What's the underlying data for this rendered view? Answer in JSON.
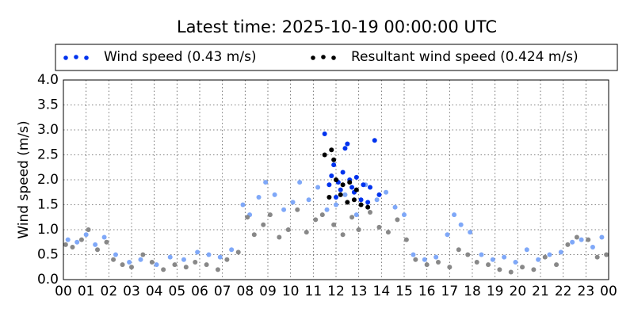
{
  "chart_data": {
    "type": "scatter",
    "title": "Latest time: 2025-10-19 00:00:00 UTC",
    "y_label": "Wind speed (m/s)",
    "xlim": [
      0,
      24
    ],
    "xticks": [
      {
        "value": 0,
        "label": "00"
      },
      {
        "value": 1,
        "label": "01"
      },
      {
        "value": 2,
        "label": "02"
      },
      {
        "value": 3,
        "label": "03"
      },
      {
        "value": 4,
        "label": "04"
      },
      {
        "value": 5,
        "label": "05"
      },
      {
        "value": 6,
        "label": "06"
      },
      {
        "value": 7,
        "label": "07"
      },
      {
        "value": 8,
        "label": "08"
      },
      {
        "value": 9,
        "label": "09"
      },
      {
        "value": 10,
        "label": "10"
      },
      {
        "value": 11,
        "label": "11"
      },
      {
        "value": 12,
        "label": "12"
      },
      {
        "value": 13,
        "label": "13"
      },
      {
        "value": 14,
        "label": "14"
      },
      {
        "value": 15,
        "label": "15"
      },
      {
        "value": 16,
        "label": "16"
      },
      {
        "value": 17,
        "label": "17"
      },
      {
        "value": 18,
        "label": "18"
      },
      {
        "value": 19,
        "label": "19"
      },
      {
        "value": 20,
        "label": "20"
      },
      {
        "value": 21,
        "label": "21"
      },
      {
        "value": 22,
        "label": "22"
      },
      {
        "value": 23,
        "label": "23"
      },
      {
        "value": 24,
        "label": "00"
      }
    ],
    "ylim": [
      0,
      4
    ],
    "yticks": [
      {
        "value": 0,
        "label": "0.0"
      },
      {
        "value": 0.5,
        "label": "0.5"
      },
      {
        "value": 1,
        "label": "1.0"
      },
      {
        "value": 1.5,
        "label": "1.5"
      },
      {
        "value": 2,
        "label": "2.0"
      },
      {
        "value": 2.5,
        "label": "2.5"
      },
      {
        "value": 3,
        "label": "3.0"
      },
      {
        "value": 3.5,
        "label": "3.5"
      },
      {
        "value": 4,
        "label": "4.0"
      }
    ],
    "grid": true,
    "legend": "top",
    "series": [
      {
        "name": "Wind speed (0.43 m/s)",
        "color": "#0033ee",
        "x": [
          11.5,
          12.5,
          12.4,
          13.7,
          11.9,
          12.3,
          12.6,
          12.9,
          13.2,
          13.5,
          11.8,
          12.1,
          12.8,
          13.1,
          13.9,
          12.0,
          12.7,
          11.7,
          13.4,
          12.2
        ],
        "values": [
          2.92,
          2.72,
          2.63,
          2.79,
          2.3,
          2.15,
          2.0,
          2.05,
          1.9,
          1.85,
          2.08,
          1.95,
          1.75,
          1.6,
          1.7,
          1.65,
          1.85,
          1.9,
          1.55,
          1.8
        ],
        "history": {
          "color": "#7fa8f8",
          "x": [
            0.2,
            0.6,
            1.0,
            1.4,
            1.8,
            2.3,
            2.9,
            3.4,
            4.1,
            4.7,
            5.3,
            5.9,
            6.4,
            6.9,
            7.4,
            7.9,
            8.2,
            8.6,
            8.9,
            9.3,
            9.7,
            10.1,
            10.4,
            10.8,
            11.2,
            11.6,
            12.0,
            12.4,
            12.9,
            13.3,
            13.8,
            14.2,
            14.6,
            15.0,
            15.4,
            15.9,
            16.4,
            16.9,
            17.2,
            17.5,
            17.9,
            18.4,
            18.9,
            19.4,
            19.9,
            20.4,
            20.9,
            21.4,
            21.9,
            22.4,
            22.8,
            23.3,
            23.7
          ],
          "values": [
            0.8,
            0.75,
            0.9,
            0.7,
            0.85,
            0.5,
            0.35,
            0.4,
            0.3,
            0.45,
            0.4,
            0.55,
            0.5,
            0.45,
            0.6,
            1.5,
            1.3,
            1.65,
            1.95,
            1.7,
            1.4,
            1.55,
            1.95,
            1.6,
            1.85,
            1.4,
            1.5,
            1.7,
            1.3,
            1.9,
            1.6,
            1.75,
            1.45,
            1.3,
            0.5,
            0.4,
            0.45,
            0.9,
            1.3,
            1.1,
            0.95,
            0.5,
            0.4,
            0.45,
            0.35,
            0.6,
            0.4,
            0.5,
            0.55,
            0.75,
            0.8,
            0.65,
            0.85
          ]
        }
      },
      {
        "name": "Resultant wind speed (0.424 m/s)",
        "color": "#000000",
        "x": [
          11.5,
          11.8,
          11.9,
          12.0,
          12.3,
          12.6,
          12.2,
          12.8,
          13.1,
          12.5,
          13.4,
          11.7,
          12.9
        ],
        "values": [
          2.5,
          2.6,
          2.4,
          2.0,
          1.9,
          1.95,
          1.7,
          1.6,
          1.5,
          1.55,
          1.45,
          1.65,
          1.8
        ],
        "history": {
          "color": "#888888",
          "x": [
            0.1,
            0.4,
            0.8,
            1.1,
            1.5,
            1.9,
            2.2,
            2.6,
            3.0,
            3.5,
            3.9,
            4.4,
            4.9,
            5.4,
            5.8,
            6.3,
            6.8,
            7.2,
            7.7,
            8.1,
            8.4,
            8.8,
            9.1,
            9.5,
            9.9,
            10.3,
            10.7,
            11.1,
            11.4,
            11.9,
            12.3,
            12.7,
            13.0,
            13.5,
            13.9,
            14.3,
            14.7,
            15.1,
            15.5,
            16.0,
            16.5,
            17.0,
            17.4,
            17.8,
            18.2,
            18.7,
            19.2,
            19.7,
            20.2,
            20.7,
            21.2,
            21.7,
            22.2,
            22.6,
            23.1,
            23.5,
            23.9
          ],
          "values": [
            0.7,
            0.65,
            0.8,
            1.0,
            0.6,
            0.75,
            0.4,
            0.3,
            0.25,
            0.5,
            0.35,
            0.2,
            0.3,
            0.25,
            0.35,
            0.3,
            0.2,
            0.4,
            0.55,
            1.25,
            0.9,
            1.1,
            1.3,
            0.85,
            1.0,
            1.4,
            0.95,
            1.2,
            1.3,
            1.1,
            0.9,
            1.25,
            1.0,
            1.35,
            1.05,
            0.95,
            1.2,
            0.8,
            0.4,
            0.3,
            0.35,
            0.25,
            0.6,
            0.5,
            0.35,
            0.3,
            0.2,
            0.15,
            0.25,
            0.2,
            0.45,
            0.3,
            0.7,
            0.85,
            0.8,
            0.45,
            0.5
          ]
        }
      }
    ]
  }
}
